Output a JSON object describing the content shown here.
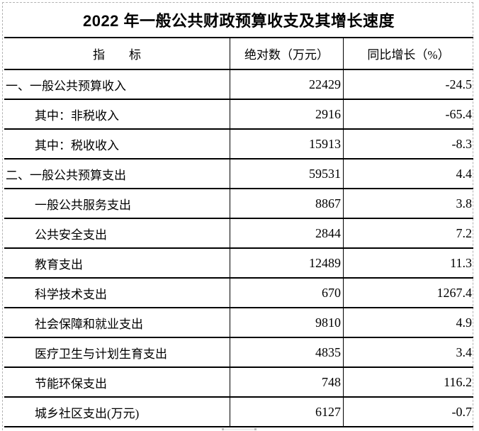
{
  "title": "2022 年一般公共财政预算收支及其增长速度",
  "table": {
    "columns": [
      "指　　标",
      "绝对数（万元）",
      "同比增长（%）"
    ],
    "rows": [
      {
        "label": "一、一般公共预算收入",
        "absolute": "22429",
        "growth": "-24.5",
        "indent": false
      },
      {
        "label": "其中：非税收入",
        "absolute": "2916",
        "growth": "-65.4",
        "indent": true
      },
      {
        "label": "其中：税收收入",
        "absolute": "15913",
        "growth": "-8.3",
        "indent": true
      },
      {
        "label": "二、一般公共预算支出",
        "absolute": "59531",
        "growth": "4.4",
        "indent": false
      },
      {
        "label": "一般公共服务支出",
        "absolute": "8867",
        "growth": "3.8",
        "indent": true
      },
      {
        "label": "公共安全支出",
        "absolute": "2844",
        "growth": "7.2",
        "indent": true
      },
      {
        "label": "教育支出",
        "absolute": "12489",
        "growth": "11.3",
        "indent": true
      },
      {
        "label": "科学技术支出",
        "absolute": "670",
        "growth": "1267.4",
        "indent": true
      },
      {
        "label": "社会保障和就业支出",
        "absolute": "9810",
        "growth": "4.9",
        "indent": true
      },
      {
        "label": "医疗卫生与计划生育支出",
        "absolute": "4835",
        "growth": "3.4",
        "indent": true
      },
      {
        "label": "节能环保支出",
        "absolute": "748",
        "growth": "116.2",
        "indent": true
      },
      {
        "label": "城乡社区支出(万元)",
        "absolute": "6127",
        "growth": "-0.7",
        "indent": true
      }
    ]
  },
  "colors": {
    "text": "#000000",
    "grid_line": "#000000",
    "page_boundary_dashed": "#b3b3b3",
    "background": "#ffffff"
  }
}
